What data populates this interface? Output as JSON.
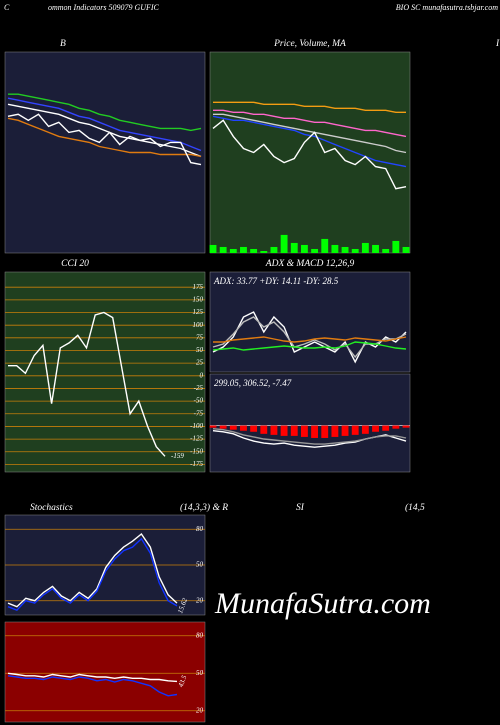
{
  "header": {
    "left": "C",
    "middle": "ommon  Indicators 509079 GUFIC",
    "right": "BIO SC munafasutra.tsbjar.com",
    "edge": "I"
  },
  "watermark": "MunafaSutra.com",
  "chart_data": [
    {
      "type": "line",
      "title": "B",
      "ylim": [
        0,
        100
      ],
      "series": [
        {
          "color": "#22cc22",
          "values": [
            79,
            79,
            78,
            77,
            76,
            75,
            74,
            72,
            71,
            69,
            68,
            66,
            65,
            64,
            63,
            62,
            62,
            62,
            61,
            62
          ]
        },
        {
          "color": "#3344ff",
          "values": [
            77,
            76,
            75,
            74,
            73,
            72,
            70,
            68,
            67,
            65,
            63,
            61,
            60,
            59,
            58,
            57,
            56,
            55,
            53,
            51
          ]
        },
        {
          "color": "#ffffff",
          "values": [
            74,
            73,
            72,
            71,
            70,
            69,
            67,
            65,
            64,
            62,
            60,
            58,
            57,
            56,
            55,
            54,
            53,
            52,
            50,
            48
          ]
        },
        {
          "color": "#e07b10",
          "values": [
            67,
            66,
            64,
            62,
            60,
            58,
            57,
            56,
            55,
            53,
            52,
            51,
            50,
            50,
            50,
            49,
            49,
            49,
            49,
            48
          ]
        },
        {
          "color": "#ffffff",
          "values": [
            68,
            69,
            66,
            69,
            63,
            65,
            60,
            61,
            57,
            55,
            60,
            54,
            58,
            56,
            57,
            53,
            55,
            55,
            45,
            44
          ]
        }
      ]
    },
    {
      "type": "line",
      "title": "Price, Volume, MA",
      "ylim": [
        0,
        100
      ],
      "series": [
        {
          "color": "#f39c12",
          "values": [
            75,
            75,
            75,
            75,
            75,
            74,
            74,
            74,
            74,
            73,
            73,
            73,
            72,
            72,
            72,
            71,
            71,
            71,
            70,
            70
          ]
        },
        {
          "color": "#ff66cc",
          "values": [
            71,
            71,
            70,
            70,
            69,
            69,
            68,
            67,
            67,
            66,
            65,
            65,
            64,
            63,
            62,
            61,
            61,
            60,
            59,
            58
          ]
        },
        {
          "color": "#cccccc",
          "values": [
            69,
            69,
            68,
            67,
            66,
            65,
            64,
            63,
            62,
            61,
            60,
            59,
            58,
            57,
            56,
            55,
            54,
            53,
            51,
            50
          ]
        },
        {
          "color": "#2244ff",
          "values": [
            68,
            67,
            66,
            66,
            65,
            64,
            63,
            62,
            61,
            59,
            58,
            56,
            54,
            52,
            50,
            48,
            46,
            45,
            44,
            43
          ]
        },
        {
          "color": "#ffffff",
          "values": [
            62,
            66,
            58,
            52,
            50,
            54,
            48,
            45,
            47,
            55,
            60,
            50,
            52,
            46,
            44,
            48,
            43,
            42,
            32,
            33
          ]
        },
        {
          "type": "bar",
          "color": "#00ff00",
          "values": [
            4,
            3,
            2,
            3,
            2,
            1,
            3,
            9,
            5,
            4,
            2,
            7,
            4,
            3,
            2,
            5,
            4,
            2,
            6,
            3
          ]
        }
      ]
    },
    {
      "type": "line",
      "title": "CCI 20",
      "ylim": [
        -190,
        205
      ],
      "yticks": [
        175,
        150,
        125,
        100,
        75,
        50,
        25,
        0,
        -25,
        -50,
        -75,
        -100,
        -125,
        -150,
        -175
      ],
      "series": [
        {
          "color": "#ffffff",
          "label": true,
          "values": [
            20,
            20,
            5,
            40,
            60,
            -55,
            55,
            65,
            80,
            55,
            120,
            125,
            115,
            20,
            -75,
            -50,
            -100,
            -140,
            -159
          ]
        }
      ]
    },
    {
      "type": "line",
      "title": "ADX  & MACD 12,26,9",
      "annotation": "ADX: 33.77 +DY: 14.11 -DY: 28.5",
      "ylim": [
        0,
        100
      ],
      "series": [
        {
          "color": "#ffffff",
          "values": [
            20,
            25,
            35,
            55,
            60,
            40,
            55,
            45,
            20,
            25,
            30,
            25,
            20,
            30,
            10,
            30,
            25,
            35,
            30,
            40
          ]
        },
        {
          "color": "#bbbbbb",
          "values": [
            25,
            28,
            38,
            50,
            55,
            45,
            50,
            40,
            25,
            28,
            32,
            28,
            22,
            28,
            15,
            28,
            28,
            33,
            33,
            38
          ]
        },
        {
          "color": "#e07b10",
          "values": [
            30,
            30,
            32,
            33,
            34,
            35,
            33,
            31,
            30,
            31,
            33,
            34,
            33,
            32,
            34,
            33,
            32,
            31,
            33,
            35
          ]
        },
        {
          "color": "#22ee22",
          "values": [
            22,
            23,
            24,
            22,
            23,
            24,
            25,
            26,
            25,
            24,
            24,
            25,
            24,
            26,
            30,
            29,
            28,
            26,
            24,
            23
          ]
        }
      ]
    },
    {
      "type": "line",
      "annotation": "299.05,  306.52,  -7.47",
      "ylim": [
        -45,
        50
      ],
      "series": [
        {
          "type": "bar",
          "color": "#ff0000",
          "values": [
            -2,
            -3,
            -4,
            -5,
            -6,
            -8,
            -9,
            -10,
            -10,
            -11,
            -12,
            -12,
            -11,
            -10,
            -9,
            -8,
            -6,
            -5,
            -3,
            -2
          ]
        },
        {
          "color": "#ffffff",
          "values": [
            -5,
            -6,
            -8,
            -12,
            -15,
            -17,
            -18,
            -17,
            -19,
            -20,
            -21,
            -20,
            -19,
            -17,
            -16,
            -13,
            -11,
            -9,
            -12,
            -15
          ]
        },
        {
          "color": "#999999",
          "values": [
            -3,
            -4,
            -6,
            -9,
            -11,
            -13,
            -14,
            -15,
            -16,
            -17,
            -18,
            -18,
            -17,
            -16,
            -15,
            -13,
            -11,
            -10,
            -10,
            -12
          ]
        }
      ]
    },
    {
      "type": "line",
      "title": "Stochastics",
      "subtitle": "(14,3,3) & R",
      "ylim": [
        8,
        92
      ],
      "yticks": [
        80,
        50,
        20
      ],
      "series": [
        {
          "color": "#ffffff",
          "values": [
            18,
            15,
            22,
            20,
            27,
            32,
            24,
            20,
            27,
            22,
            30,
            48,
            58,
            65,
            70,
            76,
            65,
            40,
            25,
            18
          ]
        },
        {
          "color": "#1133ff",
          "label": true,
          "values": [
            15,
            12,
            20,
            18,
            25,
            30,
            22,
            18,
            25,
            20,
            28,
            45,
            55,
            62,
            65,
            72,
            60,
            35,
            20,
            15.62
          ]
        }
      ]
    },
    {
      "type": "line",
      "title": "SI",
      "subtitle": "(14,5",
      "ylim": [
        11,
        91
      ],
      "yticks": [
        80,
        50,
        20
      ],
      "series": [
        {
          "color": "#1133ff",
          "values": [
            48,
            47,
            46,
            46,
            45,
            47,
            46,
            45,
            47,
            46,
            44,
            45,
            43,
            45,
            44,
            42,
            40,
            35,
            32,
            33
          ]
        },
        {
          "color": "#ffffff",
          "label": true,
          "values": [
            50,
            49,
            48,
            48,
            47,
            49,
            48,
            47,
            49,
            48,
            47,
            47,
            46,
            47,
            46,
            46,
            45,
            45,
            44,
            43.5
          ]
        }
      ]
    }
  ]
}
